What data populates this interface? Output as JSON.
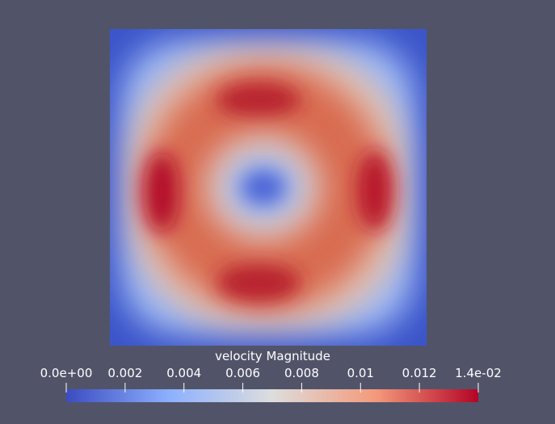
{
  "colorbar": {
    "title": "velocity Magnitude",
    "min": 0,
    "max": 0.014,
    "tick_labels": [
      "0.0e+00",
      "0.002",
      "0.004",
      "0.006",
      "0.008",
      "0.01",
      "0.012",
      "1.4e-02"
    ],
    "tick_values": [
      0,
      0.002,
      0.004,
      0.006,
      0.008,
      0.01,
      0.012,
      0.014
    ],
    "colormap": [
      "#3b4cc0",
      "#8db0fe",
      "#dddddd",
      "#f49a7b",
      "#b40426"
    ]
  }
}
